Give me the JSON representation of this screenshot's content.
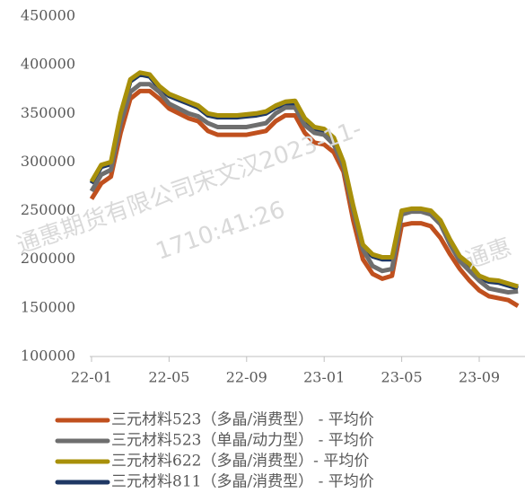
{
  "chart_data": {
    "type": "line",
    "categories": [
      "22-01",
      null,
      null,
      null,
      null,
      null,
      null,
      null,
      "22-05",
      null,
      null,
      null,
      null,
      null,
      null,
      null,
      "22-09",
      null,
      null,
      null,
      null,
      null,
      null,
      null,
      "23-01",
      null,
      null,
      null,
      null,
      null,
      null,
      null,
      "23-05",
      null,
      null,
      null,
      null,
      null,
      null,
      null,
      "23-09",
      null,
      null,
      null,
      null
    ],
    "series": [
      {
        "name": "三元材料523（多晶/消费型） - 平均价",
        "color": "#c0501e",
        "values": [
          262000,
          278000,
          285000,
          330000,
          365000,
          373000,
          373000,
          365000,
          355000,
          350000,
          345000,
          342000,
          332000,
          328000,
          328000,
          328000,
          328000,
          330000,
          332000,
          342000,
          348000,
          348000,
          330000,
          320000,
          318000,
          310000,
          290000,
          240000,
          200000,
          185000,
          180000,
          183000,
          235000,
          237000,
          237000,
          234000,
          222000,
          205000,
          190000,
          178000,
          168000,
          162000,
          160000,
          158000,
          152000
        ]
      },
      {
        "name": "三元材料523（单晶/动力型） - 平均价",
        "color": "#6e6e6e",
        "values": [
          270000,
          287000,
          292000,
          340000,
          372000,
          380000,
          380000,
          372000,
          360000,
          355000,
          350000,
          347000,
          340000,
          336000,
          336000,
          336000,
          336000,
          338000,
          340000,
          350000,
          356000,
          356000,
          338000,
          330000,
          328000,
          318000,
          295000,
          250000,
          210000,
          193000,
          188000,
          190000,
          246000,
          249000,
          249000,
          246000,
          236000,
          215000,
          198000,
          188000,
          178000,
          170000,
          168000,
          166000,
          167000
        ]
      },
      {
        "name": "三元材料622（多晶/消费型）- 平均价",
        "color": "#a8900a",
        "values": [
          280000,
          297000,
          300000,
          350000,
          385000,
          392000,
          390000,
          378000,
          370000,
          366000,
          362000,
          358000,
          350000,
          348000,
          348000,
          348000,
          349000,
          350000,
          352000,
          358000,
          362000,
          363000,
          345000,
          336000,
          334000,
          325000,
          300000,
          255000,
          215000,
          205000,
          202000,
          202000,
          250000,
          252000,
          252000,
          250000,
          240000,
          220000,
          203000,
          195000,
          183000,
          179000,
          178000,
          175000,
          172000
        ]
      },
      {
        "name": "三元材料811（多晶/消费型） - 平均价",
        "color": "#1f3864",
        "values": [
          278000,
          295000,
          298000,
          348000,
          383000,
          390000,
          388000,
          376000,
          368000,
          364000,
          360000,
          356000,
          348000,
          346000,
          346000,
          346000,
          347000,
          348000,
          350000,
          356000,
          360000,
          361000,
          343000,
          334000,
          332000,
          323000,
          298000,
          253000,
          213000,
          203000,
          200000,
          200000,
          248000,
          250000,
          250000,
          248000,
          238000,
          218000,
          201000,
          193000,
          181000,
          177000,
          176000,
          173000,
          170000
        ]
      }
    ],
    "ylim": [
      100000,
      450000
    ],
    "yticks": [
      100000,
      150000,
      200000,
      250000,
      300000,
      350000,
      400000,
      450000
    ],
    "watermark": [
      "通惠期货有限公司宋文汉2023-11-",
      "1710:41:26",
      "通惠"
    ]
  }
}
